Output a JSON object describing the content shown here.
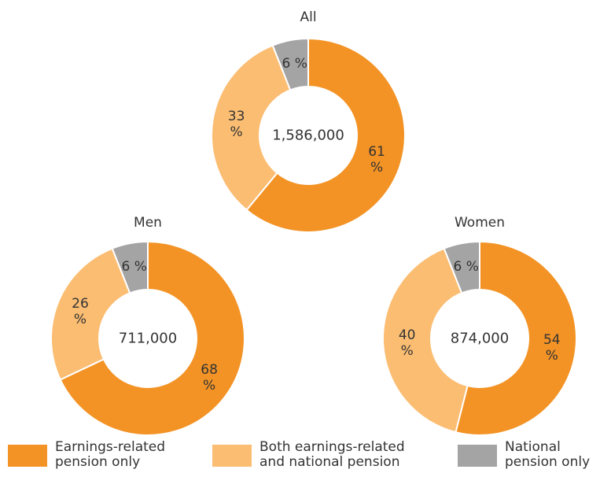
{
  "chart_data": [
    {
      "type": "pie",
      "title": "All",
      "center_text": "1,586,000",
      "categories": [
        "Earnings-related pension only",
        "Both earnings-related and national pension",
        "National pension only"
      ],
      "values": [
        61,
        33,
        6
      ],
      "value_labels": [
        "61 %",
        "33 %",
        "6 %"
      ],
      "colors": [
        "#f39325",
        "#fbbd72",
        "#a4a4a4"
      ]
    },
    {
      "type": "pie",
      "title": "Men",
      "center_text": "711,000",
      "categories": [
        "Earnings-related pension only",
        "Both earnings-related and national pension",
        "National pension only"
      ],
      "values": [
        68,
        26,
        6
      ],
      "value_labels": [
        "68 %",
        "26 %",
        "6 %"
      ],
      "colors": [
        "#f39325",
        "#fbbd72",
        "#a4a4a4"
      ]
    },
    {
      "type": "pie",
      "title": "Women",
      "center_text": "874,000",
      "categories": [
        "Earnings-related pension only",
        "Both earnings-related and national pension",
        "National pension only"
      ],
      "values": [
        54,
        40,
        6
      ],
      "value_labels": [
        "54 %",
        "40 %",
        "6 %"
      ],
      "colors": [
        "#f39325",
        "#fbbd72",
        "#a4a4a4"
      ]
    }
  ]
}
